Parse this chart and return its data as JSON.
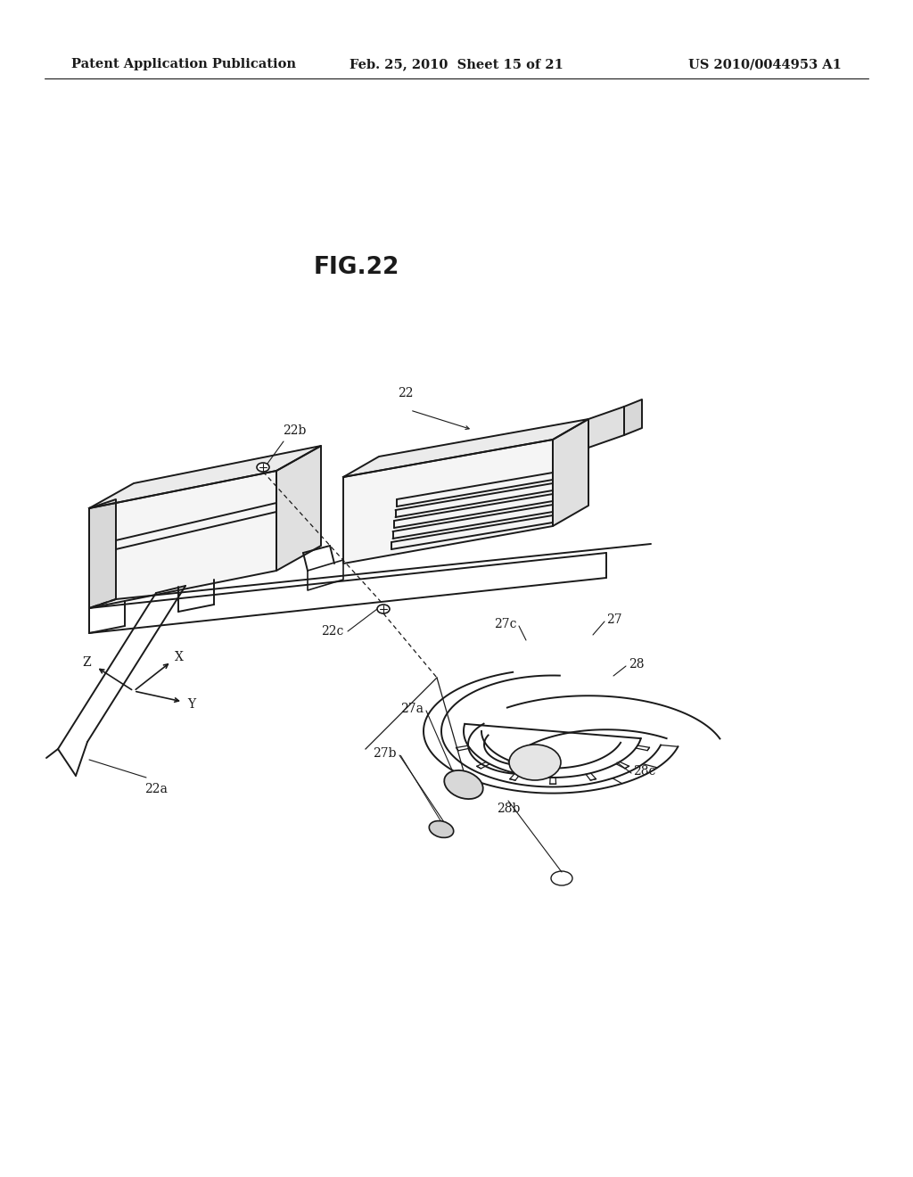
{
  "header_left": "Patent Application Publication",
  "header_center": "Feb. 25, 2010  Sheet 15 of 21",
  "header_right": "US 2010/0044953 A1",
  "fig_title": "FIG.22",
  "bg_color": "#ffffff",
  "line_color": "#1a1a1a",
  "header_fontsize": 10.5,
  "fig_title_fontsize": 19,
  "label_fontsize": 10
}
